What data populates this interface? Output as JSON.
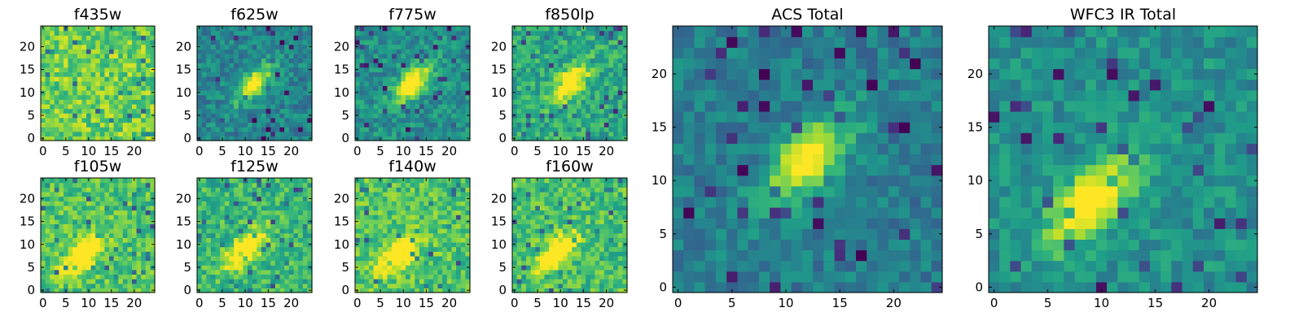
{
  "chart_data": [
    {
      "type": "heatmap",
      "title": "f435w",
      "xlim": [
        0,
        25
      ],
      "ylim": [
        0,
        25
      ],
      "xticks": [
        0,
        5,
        10,
        15,
        20
      ],
      "yticks": [
        0,
        5,
        10,
        15,
        20
      ],
      "grid": false,
      "colormap": "viridis",
      "value_range": [
        0,
        1
      ],
      "source_peak": null,
      "noise_level": 0.14,
      "mean_level": 0.78
    },
    {
      "type": "heatmap",
      "title": "f625w",
      "xlim": [
        0,
        25
      ],
      "ylim": [
        0,
        25
      ],
      "xticks": [
        0,
        5,
        10,
        15,
        20
      ],
      "yticks": [
        0,
        5,
        10,
        15,
        20
      ],
      "grid": false,
      "colormap": "viridis",
      "value_range": [
        0,
        1
      ],
      "source_peak": [
        12,
        12
      ],
      "noise_level": 0.12,
      "mean_level": 0.45
    },
    {
      "type": "heatmap",
      "title": "f775w",
      "xlim": [
        0,
        25
      ],
      "ylim": [
        0,
        25
      ],
      "xticks": [
        0,
        5,
        10,
        15,
        20
      ],
      "yticks": [
        0,
        5,
        10,
        15,
        20
      ],
      "grid": false,
      "colormap": "viridis",
      "value_range": [
        0,
        1
      ],
      "source_peak": [
        12,
        12
      ],
      "noise_level": 0.12,
      "mean_level": 0.5
    },
    {
      "type": "heatmap",
      "title": "f850lp",
      "xlim": [
        0,
        25
      ],
      "ylim": [
        0,
        25
      ],
      "xticks": [
        0,
        5,
        10,
        15,
        20
      ],
      "yticks": [
        0,
        5,
        10,
        15,
        20
      ],
      "grid": false,
      "colormap": "viridis",
      "value_range": [
        0,
        1
      ],
      "source_peak": [
        12,
        12
      ],
      "noise_level": 0.13,
      "mean_level": 0.6
    },
    {
      "type": "heatmap",
      "title": "f105w",
      "xlim": [
        0,
        25
      ],
      "ylim": [
        0,
        25
      ],
      "xticks": [
        0,
        5,
        10,
        15,
        20
      ],
      "yticks": [
        0,
        5,
        10,
        15,
        20
      ],
      "grid": false,
      "colormap": "viridis",
      "value_range": [
        0,
        1
      ],
      "source_peak": [
        9,
        8
      ],
      "noise_level": 0.13,
      "mean_level": 0.72
    },
    {
      "type": "heatmap",
      "title": "f125w",
      "xlim": [
        0,
        25
      ],
      "ylim": [
        0,
        25
      ],
      "xticks": [
        0,
        5,
        10,
        15,
        20
      ],
      "yticks": [
        0,
        5,
        10,
        15,
        20
      ],
      "grid": false,
      "colormap": "viridis",
      "value_range": [
        0,
        1
      ],
      "source_peak": [
        10,
        9
      ],
      "noise_level": 0.13,
      "mean_level": 0.66
    },
    {
      "type": "heatmap",
      "title": "f140w",
      "xlim": [
        0,
        25
      ],
      "ylim": [
        0,
        25
      ],
      "xticks": [
        0,
        5,
        10,
        15,
        20
      ],
      "yticks": [
        0,
        5,
        10,
        15,
        20
      ],
      "grid": false,
      "colormap": "viridis",
      "value_range": [
        0,
        1
      ],
      "source_peak": [
        9,
        8
      ],
      "noise_level": 0.13,
      "mean_level": 0.72
    },
    {
      "type": "heatmap",
      "title": "f160w",
      "xlim": [
        0,
        25
      ],
      "ylim": [
        0,
        25
      ],
      "xticks": [
        0,
        5,
        10,
        15,
        20
      ],
      "yticks": [
        0,
        5,
        10,
        15,
        20
      ],
      "grid": false,
      "colormap": "viridis",
      "value_range": [
        0,
        1
      ],
      "source_peak": [
        9,
        8
      ],
      "noise_level": 0.13,
      "mean_level": 0.7
    },
    {
      "type": "heatmap",
      "title": "ACS Total",
      "xlim": [
        0,
        25
      ],
      "ylim": [
        0,
        25
      ],
      "xticks": [
        0,
        5,
        10,
        15,
        20
      ],
      "yticks": [
        0,
        5,
        10,
        15,
        20
      ],
      "grid": false,
      "colormap": "viridis",
      "value_range": [
        0,
        1
      ],
      "source_peak": [
        12,
        12
      ],
      "noise_level": 0.1,
      "mean_level": 0.42
    },
    {
      "type": "heatmap",
      "title": "WFC3 IR Total",
      "xlim": [
        0,
        25
      ],
      "ylim": [
        0,
        25
      ],
      "xticks": [
        0,
        5,
        10,
        15,
        20
      ],
      "yticks": [
        0,
        5,
        10,
        15,
        20
      ],
      "grid": false,
      "colormap": "viridis",
      "value_range": [
        0,
        1
      ],
      "source_peak": [
        9,
        8
      ],
      "noise_level": 0.1,
      "mean_level": 0.5
    }
  ]
}
